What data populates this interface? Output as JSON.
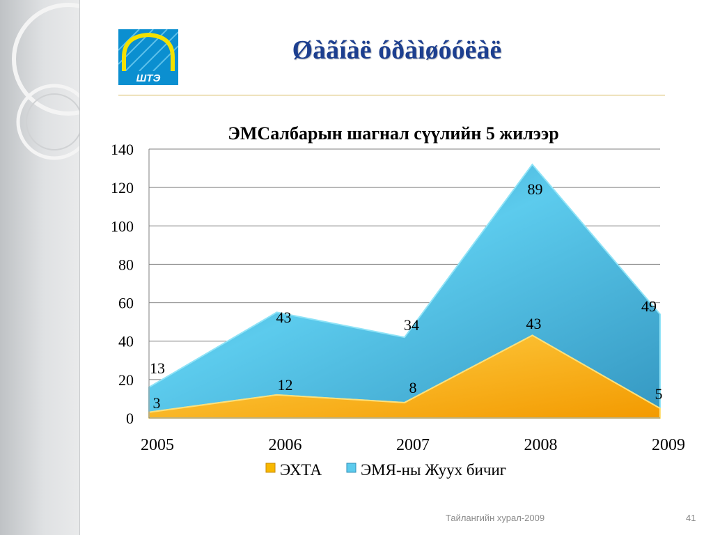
{
  "slide": {
    "title": "Øàãíàë óðàìøóóëàë",
    "footer": "Тайлангийн хурал-2009",
    "page_number": "41",
    "logo_text": "ШТЭ"
  },
  "colors": {
    "title": "#1d3f8f",
    "series_1": "#f5a800",
    "series_2": "#3aa9d0",
    "rule": "#d6b85a"
  },
  "chart_data": {
    "type": "area",
    "stacked": true,
    "title": "ЭМСалбарын шагнал сүүлийн 5 жилээр",
    "categories": [
      "2005",
      "2006",
      "2007",
      "2008",
      "2009"
    ],
    "series": [
      {
        "name": "ЭХТА",
        "values": [
          3,
          12,
          8,
          43,
          5
        ]
      },
      {
        "name": "ЭМЯ-ны Жуух бичиг",
        "values": [
          13,
          43,
          34,
          89,
          49
        ]
      }
    ],
    "ylim": [
      0,
      140
    ],
    "yticks": [
      0,
      20,
      40,
      60,
      80,
      100,
      120,
      140
    ],
    "grid": true,
    "legend": "bottom"
  }
}
